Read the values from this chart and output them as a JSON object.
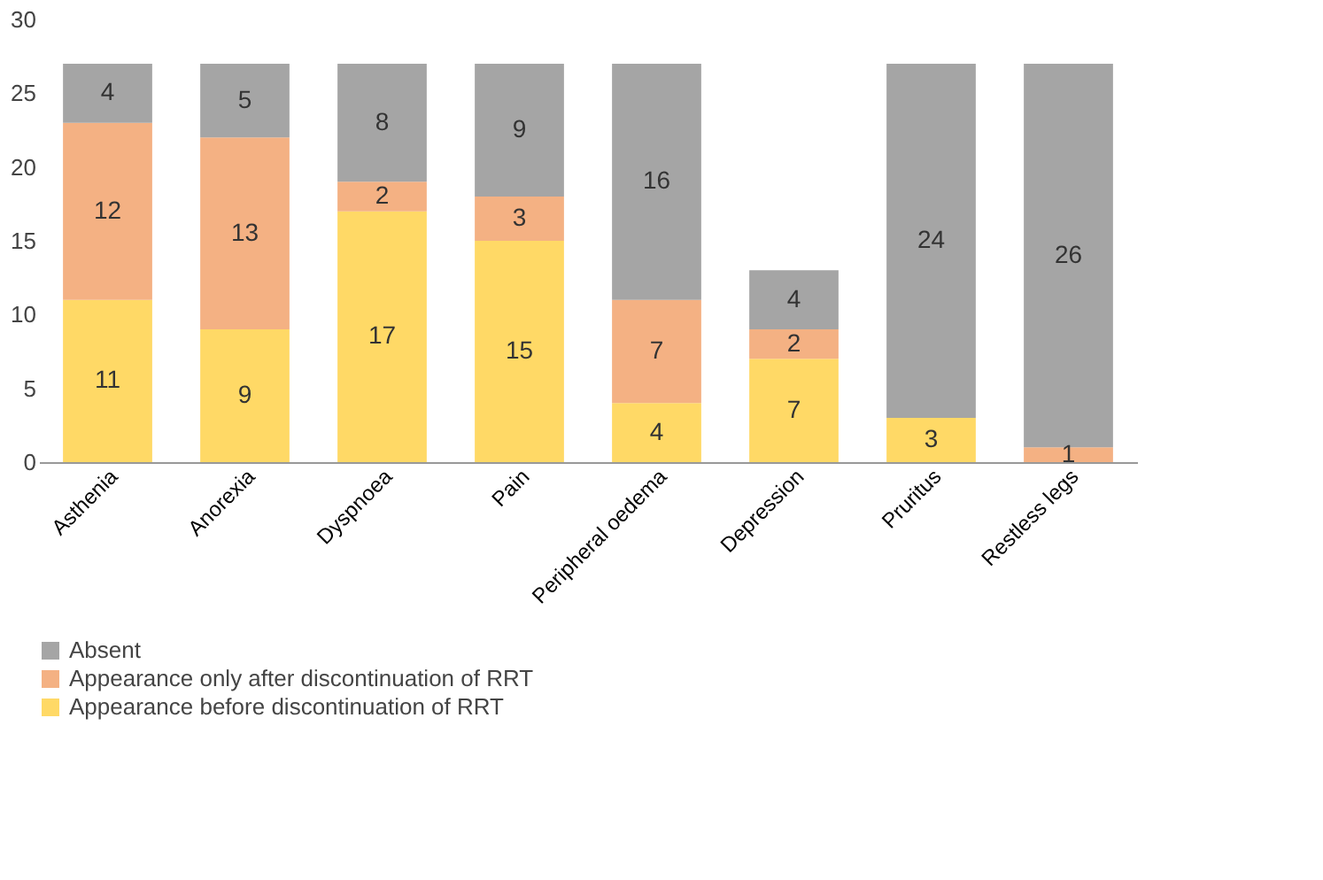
{
  "chart_data": {
    "type": "bar",
    "stacked": true,
    "categories": [
      "Asthenia",
      "Anorexia",
      "Dyspnoea",
      "Pain",
      "Peripheral oedema",
      "Depression",
      "Pruritus",
      "Restless legs"
    ],
    "series": [
      {
        "name": "Appearance before discontinuation of RRT",
        "color": "#ffd966",
        "values": [
          11,
          9,
          17,
          15,
          4,
          7,
          3,
          0
        ],
        "value_labels": [
          "11",
          "9",
          "17",
          "15",
          "4",
          "7",
          "3",
          null
        ]
      },
      {
        "name": "Appearance only after discontinuation of RRT",
        "color": "#f4b183",
        "values": [
          12,
          13,
          2,
          3,
          7,
          2,
          0,
          1
        ],
        "value_labels": [
          "12",
          "13",
          "2",
          "3",
          "7",
          "2",
          null,
          "1"
        ]
      },
      {
        "name": "Absent",
        "color": "#a5a5a5",
        "values": [
          4,
          5,
          8,
          9,
          16,
          4,
          24,
          26
        ],
        "value_labels": [
          "4",
          "5",
          "8",
          "9",
          "16",
          "4",
          "24",
          "26"
        ]
      }
    ],
    "ylim": [
      0,
      30
    ],
    "yticks": [
      0,
      5,
      10,
      15,
      20,
      25,
      30
    ],
    "grid": false,
    "legend": "bottom"
  }
}
